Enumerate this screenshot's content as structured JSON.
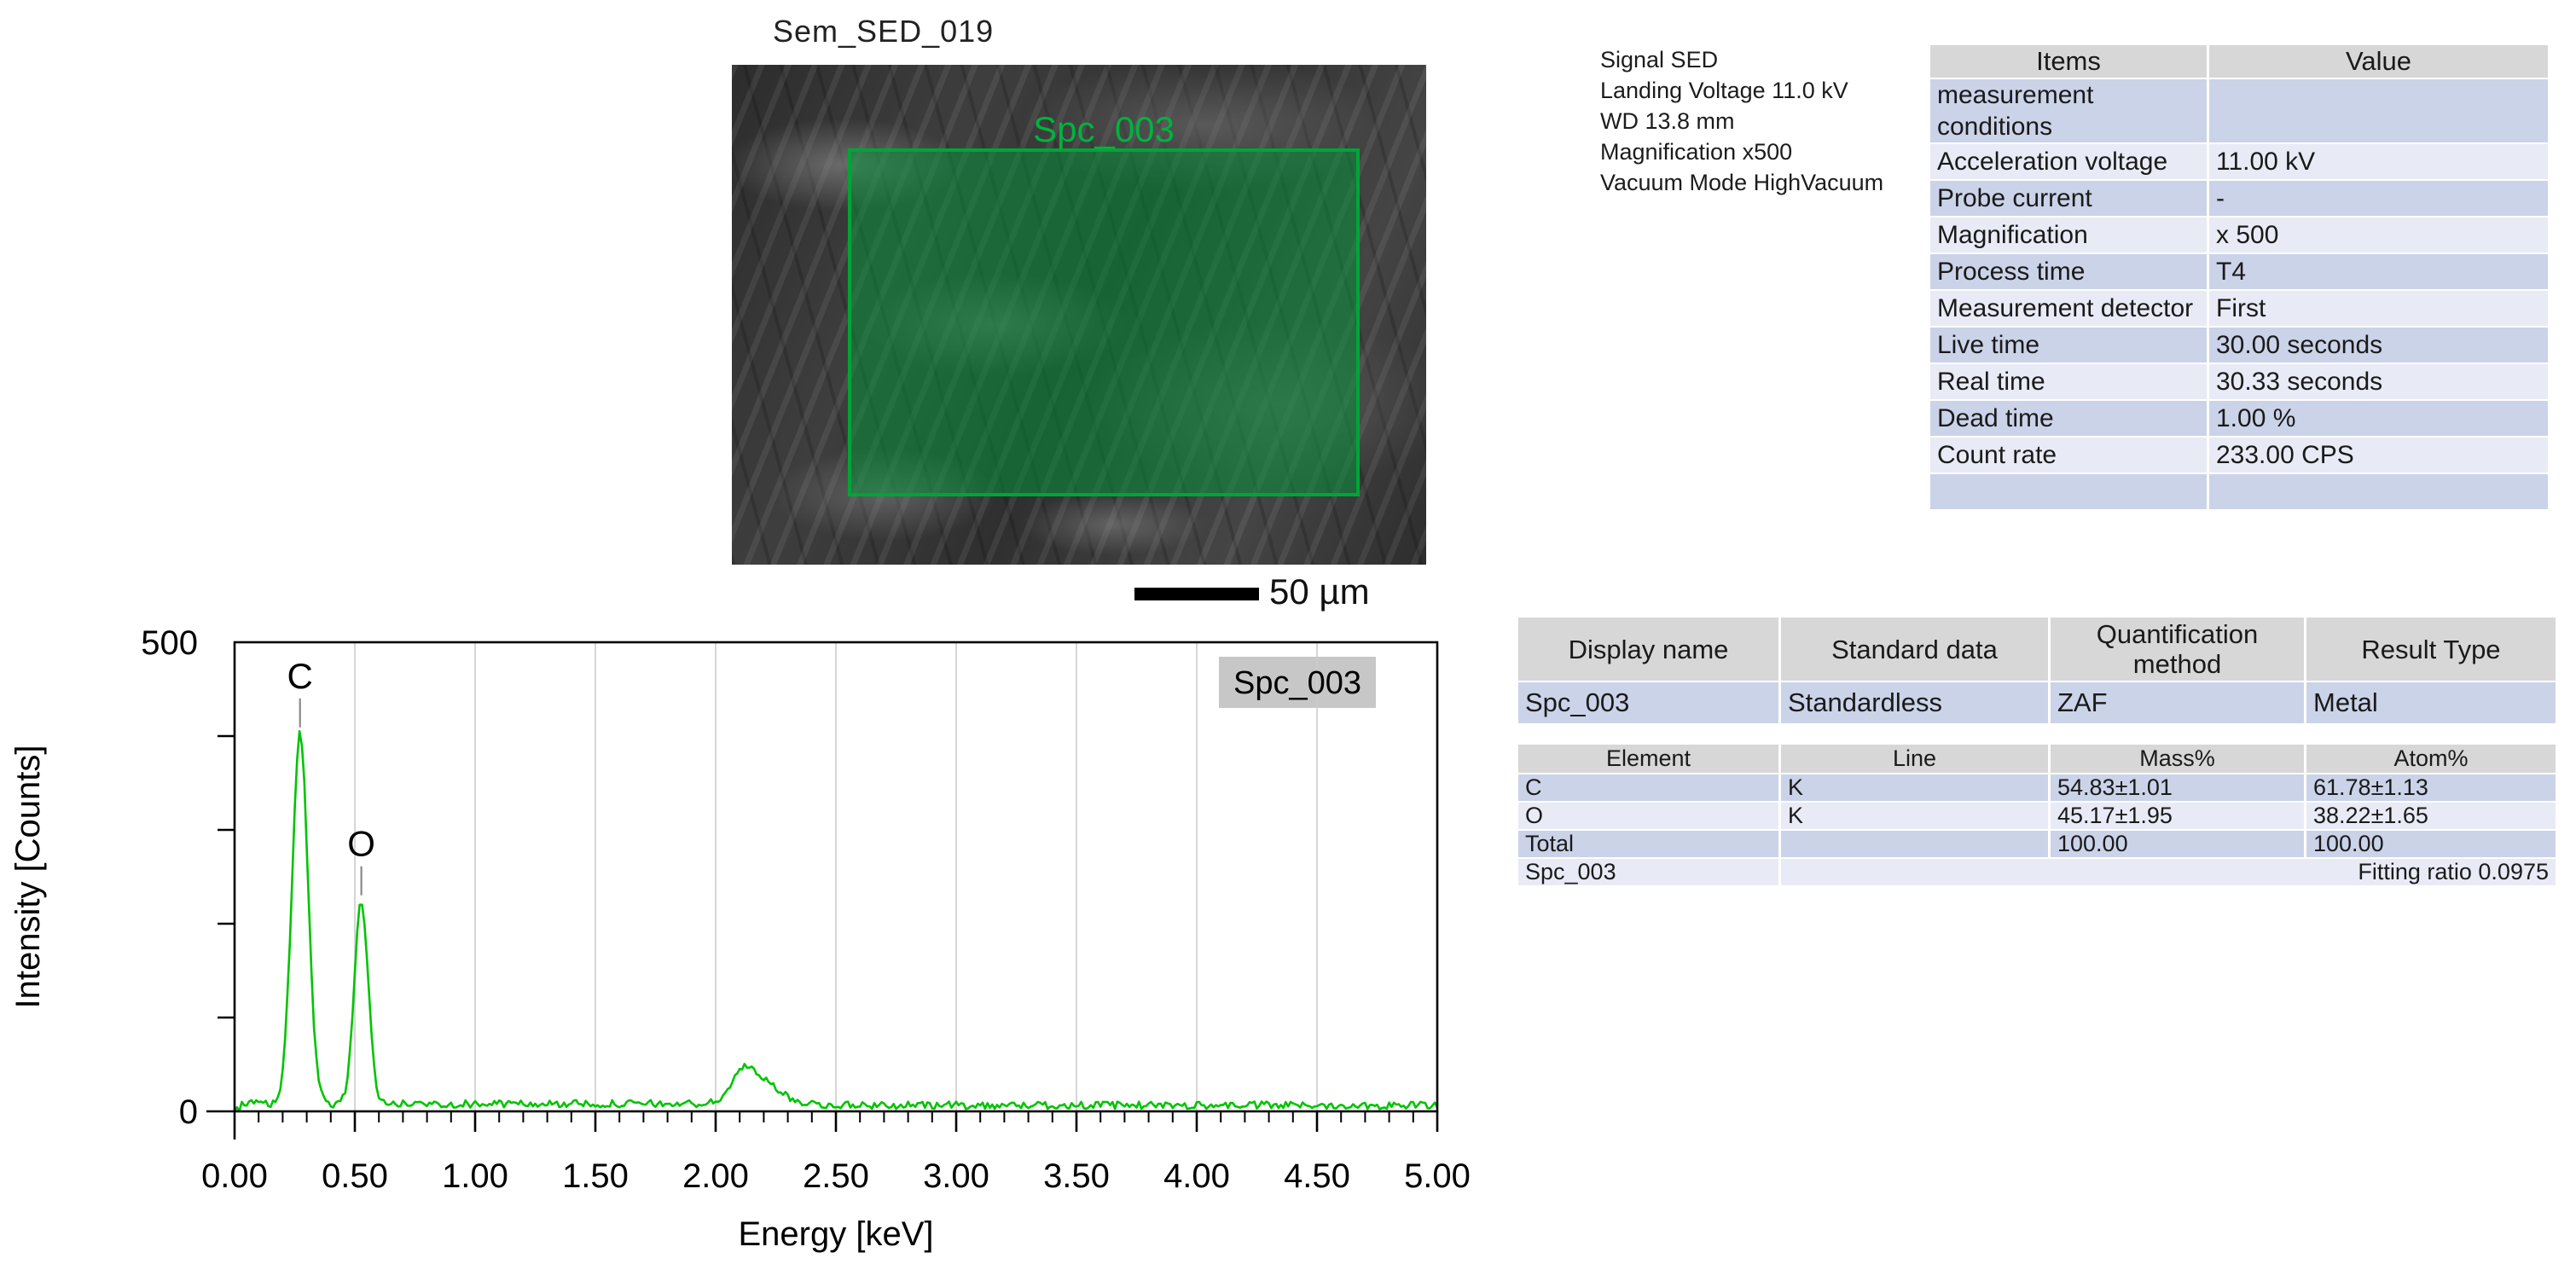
{
  "sem": {
    "title": "Sem_SED_019",
    "roi_label": "Spc_003",
    "scalebar_label": "50 µm"
  },
  "info_lines": [
    "Signal SED",
    "Landing Voltage 11.0 kV",
    "WD 13.8 mm",
    "Magnification x500",
    "Vacuum Mode HighVacuum"
  ],
  "conditions_table": {
    "headers": [
      "Items",
      "Value"
    ],
    "rows": [
      [
        "measurement conditions",
        ""
      ],
      [
        "Acceleration voltage",
        "11.00 kV"
      ],
      [
        "Probe current",
        "-"
      ],
      [
        "Magnification",
        "x 500"
      ],
      [
        "Process time",
        "T4"
      ],
      [
        "Measurement detector",
        "First"
      ],
      [
        "Live time",
        "30.00 seconds"
      ],
      [
        "Real time",
        "30.33 seconds"
      ],
      [
        "Dead time",
        "1.00 %"
      ],
      [
        "Count rate",
        "233.00 CPS"
      ],
      [
        "",
        ""
      ]
    ]
  },
  "quant_table": {
    "headers": [
      "Display name",
      "Standard data",
      "Quantification method",
      "Result Type"
    ],
    "rows": [
      [
        "Spc_003",
        "Standardless",
        "ZAF",
        "Metal"
      ]
    ]
  },
  "result_table": {
    "headers": [
      "Element",
      "Line",
      "Mass%",
      "Atom%"
    ],
    "rows": [
      [
        "C",
        "K",
        "54.83±1.01",
        "61.78±1.13"
      ],
      [
        "O",
        "K",
        "45.17±1.95",
        "38.22±1.65"
      ],
      [
        "Total",
        "",
        "100.00",
        "100.00"
      ]
    ],
    "footer_left": "Spc_003",
    "footer_right": "Fitting ratio 0.0975"
  },
  "chart_data": {
    "type": "line",
    "title": "",
    "xlabel": "Energy [keV]",
    "ylabel": "Intensity [Counts]",
    "xlim": [
      0.0,
      5.0
    ],
    "ylim": [
      0,
      500
    ],
    "x_tick_step": 0.5,
    "x_minor_tick_step": 0.1,
    "x_tick_labels": [
      "0.00",
      "0.50",
      "1.00",
      "1.50",
      "2.00",
      "2.50",
      "3.00",
      "3.50",
      "4.00",
      "4.50",
      "5.00"
    ],
    "y_tick_labels": [
      {
        "value": 500,
        "label": "500"
      },
      {
        "value": 0,
        "label": "0"
      }
    ],
    "y_ticks_unlabeled": [
      100,
      200,
      300,
      400
    ],
    "grid": "vertical major gridlines every 0.5 keV",
    "legend": {
      "label": "Spc_003",
      "position": "top-right"
    },
    "series": [
      {
        "name": "Spc_003",
        "color": "#00c400",
        "baseline_counts": 8,
        "baseline_counts_above_2p45_keV": 6.5,
        "noise_counts": 4,
        "peaks": [
          {
            "label": "C",
            "energy_keV": 0.272,
            "peak_counts": 402,
            "sigma_keV": 0.033,
            "marker": true
          },
          {
            "label": "O",
            "energy_keV": 0.527,
            "peak_counts": 223,
            "sigma_keV": 0.029,
            "marker": true
          },
          {
            "label": "",
            "energy_keV": 2.125,
            "peak_counts": 47,
            "sigma_left_keV": 0.055,
            "sigma_right_keV": 0.095,
            "marker": false
          }
        ]
      }
    ],
    "marker_color": "#8a8a8a",
    "gridline_color": "#cccccc",
    "legend_bg": "#c7c7c7"
  }
}
